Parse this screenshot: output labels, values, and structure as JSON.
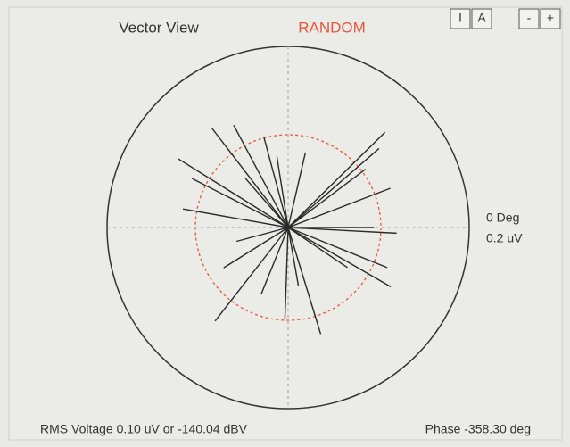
{
  "header": {
    "title": "Vector View",
    "mode": "RANDOM",
    "buttons": [
      "I",
      "A",
      "-",
      "+"
    ]
  },
  "plot": {
    "angle_label": "0 Deg",
    "scale": {
      "value": 0.2,
      "label": "0.2 uV"
    },
    "vectors": [
      {
        "angle": 127.5,
        "magnitude": 0.138
      },
      {
        "angle": 118,
        "magnitude": 0.128
      },
      {
        "angle": 105,
        "magnitude": 0.104
      },
      {
        "angle": 77,
        "magnitude": 0.085
      },
      {
        "angle": 44.5,
        "magnitude": 0.15
      },
      {
        "angle": 41,
        "magnitude": 0.133
      },
      {
        "angle": 21,
        "magnitude": 0.121
      },
      {
        "angle": 148,
        "magnitude": 0.143
      },
      {
        "angle": 153,
        "magnitude": 0.119
      },
      {
        "angle": 170,
        "magnitude": 0.118
      },
      {
        "angle": -3,
        "magnitude": 0.12
      },
      {
        "angle": -22,
        "magnitude": 0.118
      },
      {
        "angle": -30,
        "magnitude": 0.131
      },
      {
        "angle": -128,
        "magnitude": 0.131
      },
      {
        "angle": -73,
        "magnitude": 0.123
      },
      {
        "angle": -92,
        "magnitude": 0.101
      },
      {
        "angle": -112,
        "magnitude": 0.079
      },
      {
        "angle": -148,
        "magnitude": 0.084
      },
      {
        "angle": -34,
        "magnitude": 0.079
      },
      {
        "angle": 37,
        "magnitude": 0.107
      },
      {
        "angle": 99,
        "magnitude": 0.079
      },
      {
        "angle": -165,
        "magnitude": 0.059
      },
      {
        "angle": 0,
        "magnitude": 0.095
      },
      {
        "angle": 131,
        "magnitude": 0.072
      },
      {
        "angle": -80,
        "magnitude": 0.065
      }
    ]
  },
  "status": {
    "rms": "RMS Voltage 0.10 uV or -140.04 dBV",
    "phase": "Phase -358.30 deg"
  }
}
